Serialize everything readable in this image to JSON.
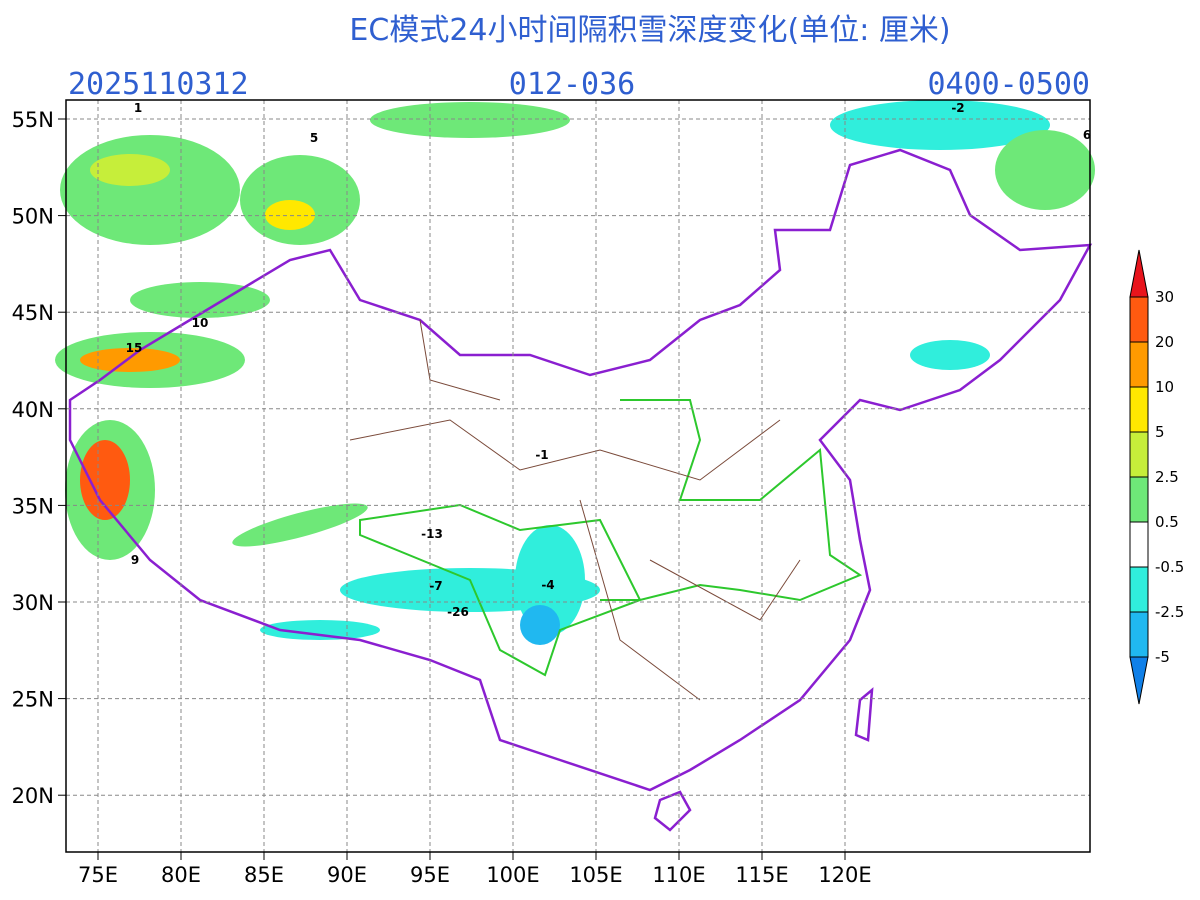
{
  "header": {
    "title": "EC模式24小时间隔积雪深度变化(单位: 厘米)",
    "init_time": "2025110312",
    "forecast_hours": "012-036",
    "valid_time": "0400-0500"
  },
  "lat_labels": [
    "55N",
    "50N",
    "45N",
    "40N",
    "35N",
    "30N",
    "25N",
    "20N"
  ],
  "lon_labels": [
    "75E",
    "80E",
    "85E",
    "90E",
    "95E",
    "100E",
    "105E",
    "110E",
    "115E",
    "120E"
  ],
  "colorbar": {
    "labels": [
      "30",
      "20",
      "10",
      "5",
      "2.5",
      "0.5",
      "-0.5",
      "-2.5",
      "-5"
    ],
    "colors": [
      "#e8141c",
      "#ff5a10",
      "#ff9a00",
      "#ffe800",
      "#c6ee3a",
      "#6ee878",
      "#ffffff",
      "#30eedc",
      "#20b8f0",
      "#1080e8"
    ]
  },
  "map_values": [
    "-13",
    "-26",
    "-7",
    "-4",
    "-1",
    "15",
    "10",
    "9",
    "5",
    "6",
    "-2",
    "1"
  ]
}
